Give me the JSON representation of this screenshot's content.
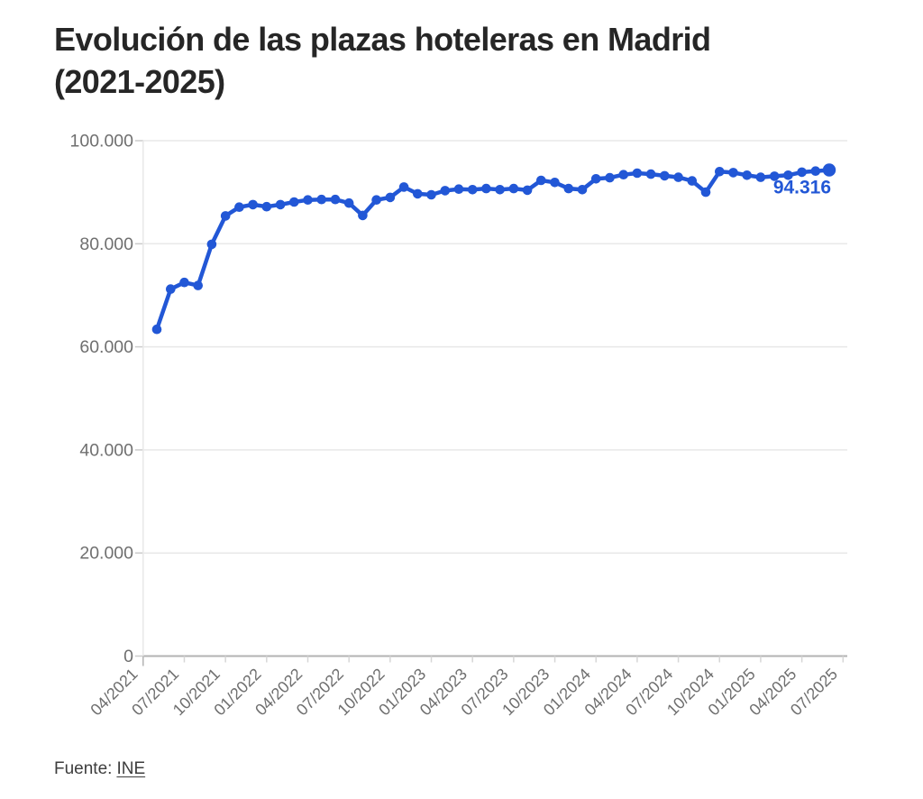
{
  "title_line1": "Evolución de las plazas hoteleras en Madrid",
  "title_line2": "(2021-2025)",
  "footer": {
    "source_label": "Fuente:",
    "source_link": "INE"
  },
  "colors": {
    "line": "#2257d6",
    "title_text": "#262626",
    "axis_text": "#6f6f6f",
    "gridline": "#e8e8e8",
    "baseline": "#b3b3b3",
    "footer_text": "#3d3d3d"
  },
  "chart_data": {
    "type": "line",
    "title": "Evolución de las plazas hoteleras en Madrid (2021-2025)",
    "xlabel": "",
    "ylabel": "",
    "ylim": [
      0,
      100000
    ],
    "grid": "horizontal",
    "legend": "none",
    "line_color": "#2257d6",
    "annotation": "94.316",
    "annotation_value": 94316,
    "y_ticks": [
      0,
      20000,
      40000,
      60000,
      80000,
      100000
    ],
    "y_tick_labels": [
      "0",
      "20.000",
      "40.000",
      "60.000",
      "80.000",
      "100.000"
    ],
    "x_tick_labels": [
      "04/2021",
      "07/2021",
      "10/2021",
      "01/2022",
      "04/2022",
      "07/2022",
      "10/2022",
      "01/2023",
      "04/2023",
      "07/2023",
      "10/2023",
      "01/2024",
      "04/2024",
      "07/2024",
      "10/2024",
      "01/2025",
      "04/2025",
      "07/2025"
    ],
    "x": [
      "05/2021",
      "06/2021",
      "07/2021",
      "08/2021",
      "09/2021",
      "10/2021",
      "11/2021",
      "12/2021",
      "01/2022",
      "02/2022",
      "03/2022",
      "04/2022",
      "05/2022",
      "06/2022",
      "07/2022",
      "08/2022",
      "09/2022",
      "10/2022",
      "11/2022",
      "12/2022",
      "01/2023",
      "02/2023",
      "03/2023",
      "04/2023",
      "05/2023",
      "06/2023",
      "07/2023",
      "08/2023",
      "09/2023",
      "10/2023",
      "11/2023",
      "12/2023",
      "01/2024",
      "02/2024",
      "03/2024",
      "04/2024",
      "05/2024",
      "06/2024",
      "07/2024",
      "08/2024",
      "09/2024",
      "10/2024",
      "11/2024",
      "12/2024",
      "01/2025",
      "02/2025",
      "03/2025",
      "04/2025",
      "05/2025",
      "06/2025"
    ],
    "values": [
      63400,
      71200,
      72500,
      71900,
      79900,
      85400,
      87100,
      87600,
      87200,
      87600,
      88100,
      88500,
      88600,
      88600,
      87900,
      85500,
      88500,
      89000,
      91000,
      89700,
      89500,
      90300,
      90600,
      90500,
      90700,
      90500,
      90700,
      90400,
      92300,
      91900,
      90700,
      90500,
      92600,
      92800,
      93400,
      93700,
      93500,
      93200,
      92900,
      92200,
      90000,
      94000,
      93800,
      93300,
      92900,
      93100,
      93300,
      93900,
      94100,
      94316
    ]
  }
}
